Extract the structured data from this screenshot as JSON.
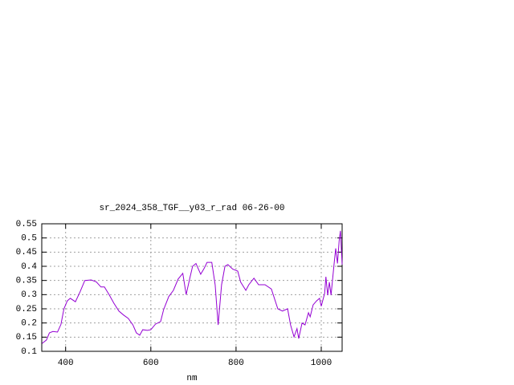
{
  "chart_data": {
    "type": "line",
    "title": "sr_2024_358_TGF__y03_r_rad 06-26-00",
    "xlabel": "nm",
    "color": "#9400d3",
    "grid": true,
    "xlim": [
      344,
      1049
    ],
    "ylim": [
      0.1,
      0.55
    ],
    "xticks": [
      400,
      600,
      800,
      1000
    ],
    "yticks": [
      0.1,
      0.15,
      0.2,
      0.25,
      0.3,
      0.35,
      0.4,
      0.45,
      0.5,
      0.55
    ],
    "x": [
      345,
      355,
      362,
      370,
      381,
      389,
      396,
      404,
      411,
      423,
      434,
      445,
      460,
      472,
      483,
      491,
      502,
      513,
      525,
      536,
      547,
      558,
      566,
      574,
      581,
      592,
      600,
      611,
      623,
      630,
      642,
      653,
      664,
      675,
      683,
      691,
      698,
      706,
      717,
      725,
      732,
      743,
      751,
      758,
      766,
      774,
      781,
      792,
      804,
      811,
      823,
      830,
      842,
      853,
      868,
      883,
      898,
      909,
      921,
      928,
      936,
      943,
      947,
      955,
      962,
      970,
      974,
      981,
      989,
      996,
      1000,
      1008,
      1011,
      1015,
      1019,
      1023,
      1030,
      1034,
      1038,
      1042,
      1045,
      1049
    ],
    "values": [
      0.128,
      0.14,
      0.165,
      0.17,
      0.168,
      0.195,
      0.25,
      0.278,
      0.287,
      0.275,
      0.31,
      0.35,
      0.352,
      0.345,
      0.327,
      0.327,
      0.3,
      0.27,
      0.242,
      0.228,
      0.216,
      0.193,
      0.165,
      0.157,
      0.176,
      0.174,
      0.176,
      0.196,
      0.205,
      0.247,
      0.293,
      0.315,
      0.355,
      0.375,
      0.3,
      0.355,
      0.4,
      0.41,
      0.372,
      0.392,
      0.414,
      0.414,
      0.335,
      0.193,
      0.335,
      0.4,
      0.406,
      0.39,
      0.383,
      0.344,
      0.315,
      0.335,
      0.358,
      0.335,
      0.335,
      0.32,
      0.25,
      0.242,
      0.25,
      0.193,
      0.151,
      0.18,
      0.145,
      0.2,
      0.193,
      0.236,
      0.222,
      0.264,
      0.278,
      0.287,
      0.259,
      0.304,
      0.363,
      0.298,
      0.344,
      0.298,
      0.406,
      0.463,
      0.41,
      0.49,
      0.525,
      0.406
    ]
  }
}
